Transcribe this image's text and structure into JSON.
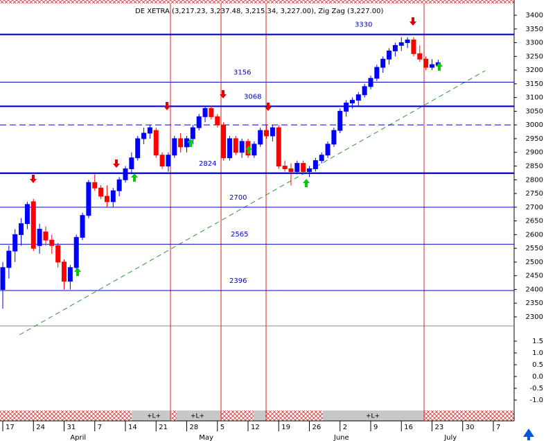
{
  "chart_data": {
    "type": "candlestick",
    "title": "DE XETRA (3,217.23, 3,237.48, 3,215.34, 3,227.00), Zig Zag (3,227.00)",
    "categories": [
      "17",
      null,
      null,
      null,
      null,
      "24",
      null,
      null,
      null,
      null,
      "31",
      null,
      null,
      null,
      null,
      "7",
      null,
      null,
      null,
      null,
      "14",
      null,
      null,
      null,
      null,
      "21",
      null,
      null,
      null,
      null,
      "28",
      null,
      null,
      null,
      null,
      "5",
      null,
      null,
      null,
      null,
      "12",
      null,
      null,
      null,
      null,
      "19",
      null,
      null,
      null,
      null,
      "26",
      null,
      null,
      null,
      null,
      "2",
      null,
      null,
      null,
      null,
      "9",
      null,
      null,
      null,
      null,
      "16",
      null,
      null,
      null,
      null,
      "23",
      null,
      null,
      null,
      null,
      "30",
      null,
      null,
      null,
      null,
      "7"
    ],
    "months": [
      null,
      null,
      null,
      null,
      null,
      null,
      null,
      null,
      null,
      null,
      null,
      "April",
      null,
      null,
      null,
      null,
      null,
      null,
      null,
      null,
      null,
      null,
      null,
      null,
      null,
      null,
      null,
      null,
      null,
      null,
      null,
      null,
      "May",
      null,
      null,
      null,
      null,
      null,
      null,
      null,
      null,
      null,
      null,
      null,
      null,
      null,
      null,
      null,
      null,
      null,
      null,
      null,
      null,
      null,
      "June",
      null,
      null,
      null,
      null,
      null,
      null,
      null,
      null,
      null,
      null,
      null,
      null,
      null,
      null,
      null,
      null,
      null,
      "July",
      null,
      null,
      null,
      null
    ],
    "open": [
      2400,
      2480,
      2540,
      2600,
      2640,
      2720,
      2560,
      2610,
      2580,
      2560,
      2500,
      2430,
      2480,
      2590,
      2670,
      2790,
      2770,
      2740,
      2720,
      2760,
      2800,
      2840,
      2880,
      2950,
      2970,
      2980,
      2890,
      2850,
      2890,
      2950,
      2920,
      2950,
      2990,
      3030,
      3060,
      3030,
      3000,
      2880,
      2950,
      2900,
      2940,
      2890,
      2930,
      2980,
      2960,
      2990,
      2850,
      2840,
      2830,
      2860,
      2830,
      2840,
      2870,
      2890,
      2930,
      2980,
      3050,
      3080,
      3090,
      3110,
      3140,
      3170,
      3210,
      3240,
      3270,
      3290,
      3300,
      3310,
      3260,
      3240,
      3210,
      3217.23,
      null,
      null,
      null,
      null,
      null,
      null,
      null,
      null,
      null
    ],
    "high": [
      2500,
      2560,
      2620,
      2660,
      2720,
      2730,
      2640,
      2630,
      2600,
      2570,
      2510,
      2490,
      2600,
      2680,
      2800,
      2820,
      2780,
      2780,
      2770,
      2810,
      2850,
      2900,
      2960,
      2990,
      3000,
      2990,
      2900,
      2900,
      2960,
      2970,
      2960,
      3000,
      3040,
      3070,
      3070,
      3040,
      3010,
      2960,
      2960,
      2950,
      2950,
      2940,
      2990,
      3000,
      3000,
      3000,
      2870,
      2860,
      2870,
      2870,
      2850,
      2880,
      2900,
      2940,
      2990,
      3060,
      3090,
      3100,
      3120,
      3150,
      3180,
      3220,
      3250,
      3280,
      3300,
      3320,
      3320,
      3320,
      3290,
      3250,
      3240,
      3237.48,
      null,
      null,
      null,
      null,
      null,
      null,
      null,
      null,
      null
    ],
    "low": [
      2330,
      2440,
      2500,
      2560,
      2620,
      2540,
      2530,
      2560,
      2530,
      2480,
      2400,
      2400,
      2470,
      2580,
      2660,
      2760,
      2730,
      2700,
      2700,
      2740,
      2790,
      2820,
      2870,
      2930,
      2950,
      2880,
      2840,
      2830,
      2880,
      2900,
      2900,
      2930,
      2980,
      3010,
      3020,
      2990,
      2870,
      2870,
      2890,
      2880,
      2880,
      2880,
      2920,
      2950,
      2940,
      2840,
      2830,
      2780,
      2820,
      2820,
      2810,
      2830,
      2860,
      2880,
      2920,
      2970,
      3030,
      3060,
      3070,
      3100,
      3130,
      3160,
      3190,
      3220,
      3250,
      3270,
      3280,
      3250,
      3230,
      3200,
      3200,
      3215.34,
      null,
      null,
      null,
      null,
      null,
      null,
      null,
      null,
      null
    ],
    "close": [
      2480,
      2540,
      2600,
      2640,
      2710,
      2550,
      2620,
      2580,
      2560,
      2500,
      2430,
      2480,
      2590,
      2670,
      2790,
      2770,
      2740,
      2720,
      2760,
      2800,
      2840,
      2880,
      2950,
      2970,
      2990,
      2890,
      2850,
      2890,
      2950,
      2920,
      2950,
      2990,
      3030,
      3060,
      3030,
      3000,
      2880,
      2950,
      2900,
      2940,
      2890,
      2930,
      2980,
      2960,
      2990,
      2850,
      2840,
      2830,
      2860,
      2830,
      2840,
      2870,
      2890,
      2930,
      2980,
      3050,
      3080,
      3090,
      3110,
      3140,
      3170,
      3210,
      3240,
      3270,
      3290,
      3300,
      3310,
      3260,
      3240,
      3210,
      3220,
      3227,
      null,
      null,
      null,
      null,
      null,
      null,
      null,
      null,
      null
    ],
    "up_color": "#0000ff",
    "down_color": "#ff0000",
    "levels": [
      3330,
      3156,
      3068,
      2824,
      2700,
      2565,
      2396
    ],
    "dashed_level": 3000,
    "level_color": "#0000cc",
    "ylim": [
      2300,
      3400
    ],
    "yticks": [
      3400,
      3350,
      3300,
      3250,
      3200,
      3150,
      3100,
      3050,
      3000,
      2950,
      2900,
      2850,
      2800,
      2750,
      2700,
      2650,
      2600,
      2550,
      2500,
      2450,
      2400,
      2350,
      2300
    ],
    "y2lim": [
      -1.0,
      1.5
    ],
    "y2ticks": [
      1.5,
      {
        "value": 1.0,
        "label": "1.0"
      },
      0.5,
      {
        "value": 0.0,
        "label": "0.0"
      },
      -0.5,
      {
        "value": -1.0,
        "label": "-1.0"
      }
    ],
    "strip_labels": [
      "+L+",
      "+L+",
      "+L+"
    ]
  }
}
